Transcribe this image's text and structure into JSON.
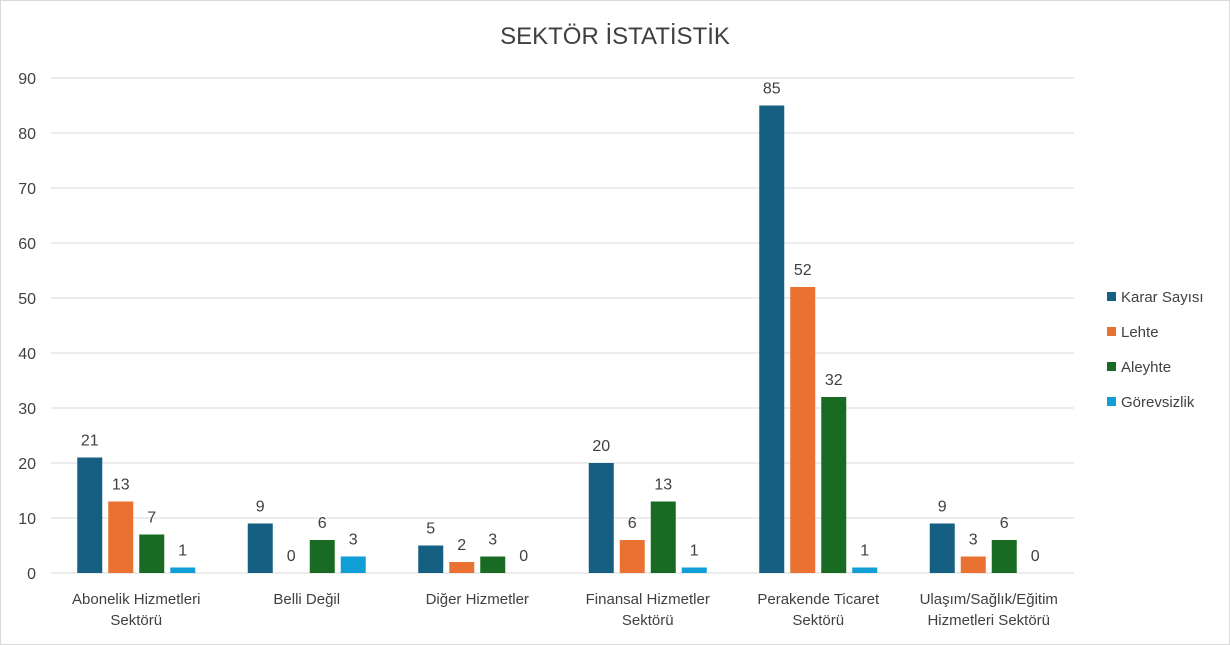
{
  "chart_data": {
    "type": "bar",
    "title": "SEKTÖR İSTATİSTİK",
    "xlabel": "",
    "ylabel": "",
    "ylim": [
      0,
      90
    ],
    "y_ticks": [
      0,
      10,
      20,
      30,
      40,
      50,
      60,
      70,
      80,
      90
    ],
    "grid": true,
    "legend_position": "right",
    "categories": [
      [
        "Abonelik Hizmetleri",
        "Sektörü"
      ],
      [
        "Belli Değil"
      ],
      [
        "Diğer Hizmetler"
      ],
      [
        "Finansal Hizmetler",
        "Sektörü"
      ],
      [
        "Perakende Ticaret",
        "Sektörü"
      ],
      [
        "Ulaşım/Sağlık/Eğitim",
        "Hizmetleri Sektörü"
      ]
    ],
    "series": [
      {
        "name": "Karar Sayısı",
        "color": "#156082",
        "values": [
          21,
          9,
          5,
          20,
          85,
          9
        ]
      },
      {
        "name": "Lehte",
        "color": "#E97132",
        "values": [
          13,
          0,
          2,
          6,
          52,
          3
        ]
      },
      {
        "name": "Aleyhte",
        "color": "#196B24",
        "values": [
          7,
          6,
          3,
          13,
          32,
          6
        ]
      },
      {
        "name": "Görevsizlik",
        "color": "#0F9ED5",
        "values": [
          1,
          3,
          0,
          1,
          1,
          0
        ]
      }
    ]
  }
}
